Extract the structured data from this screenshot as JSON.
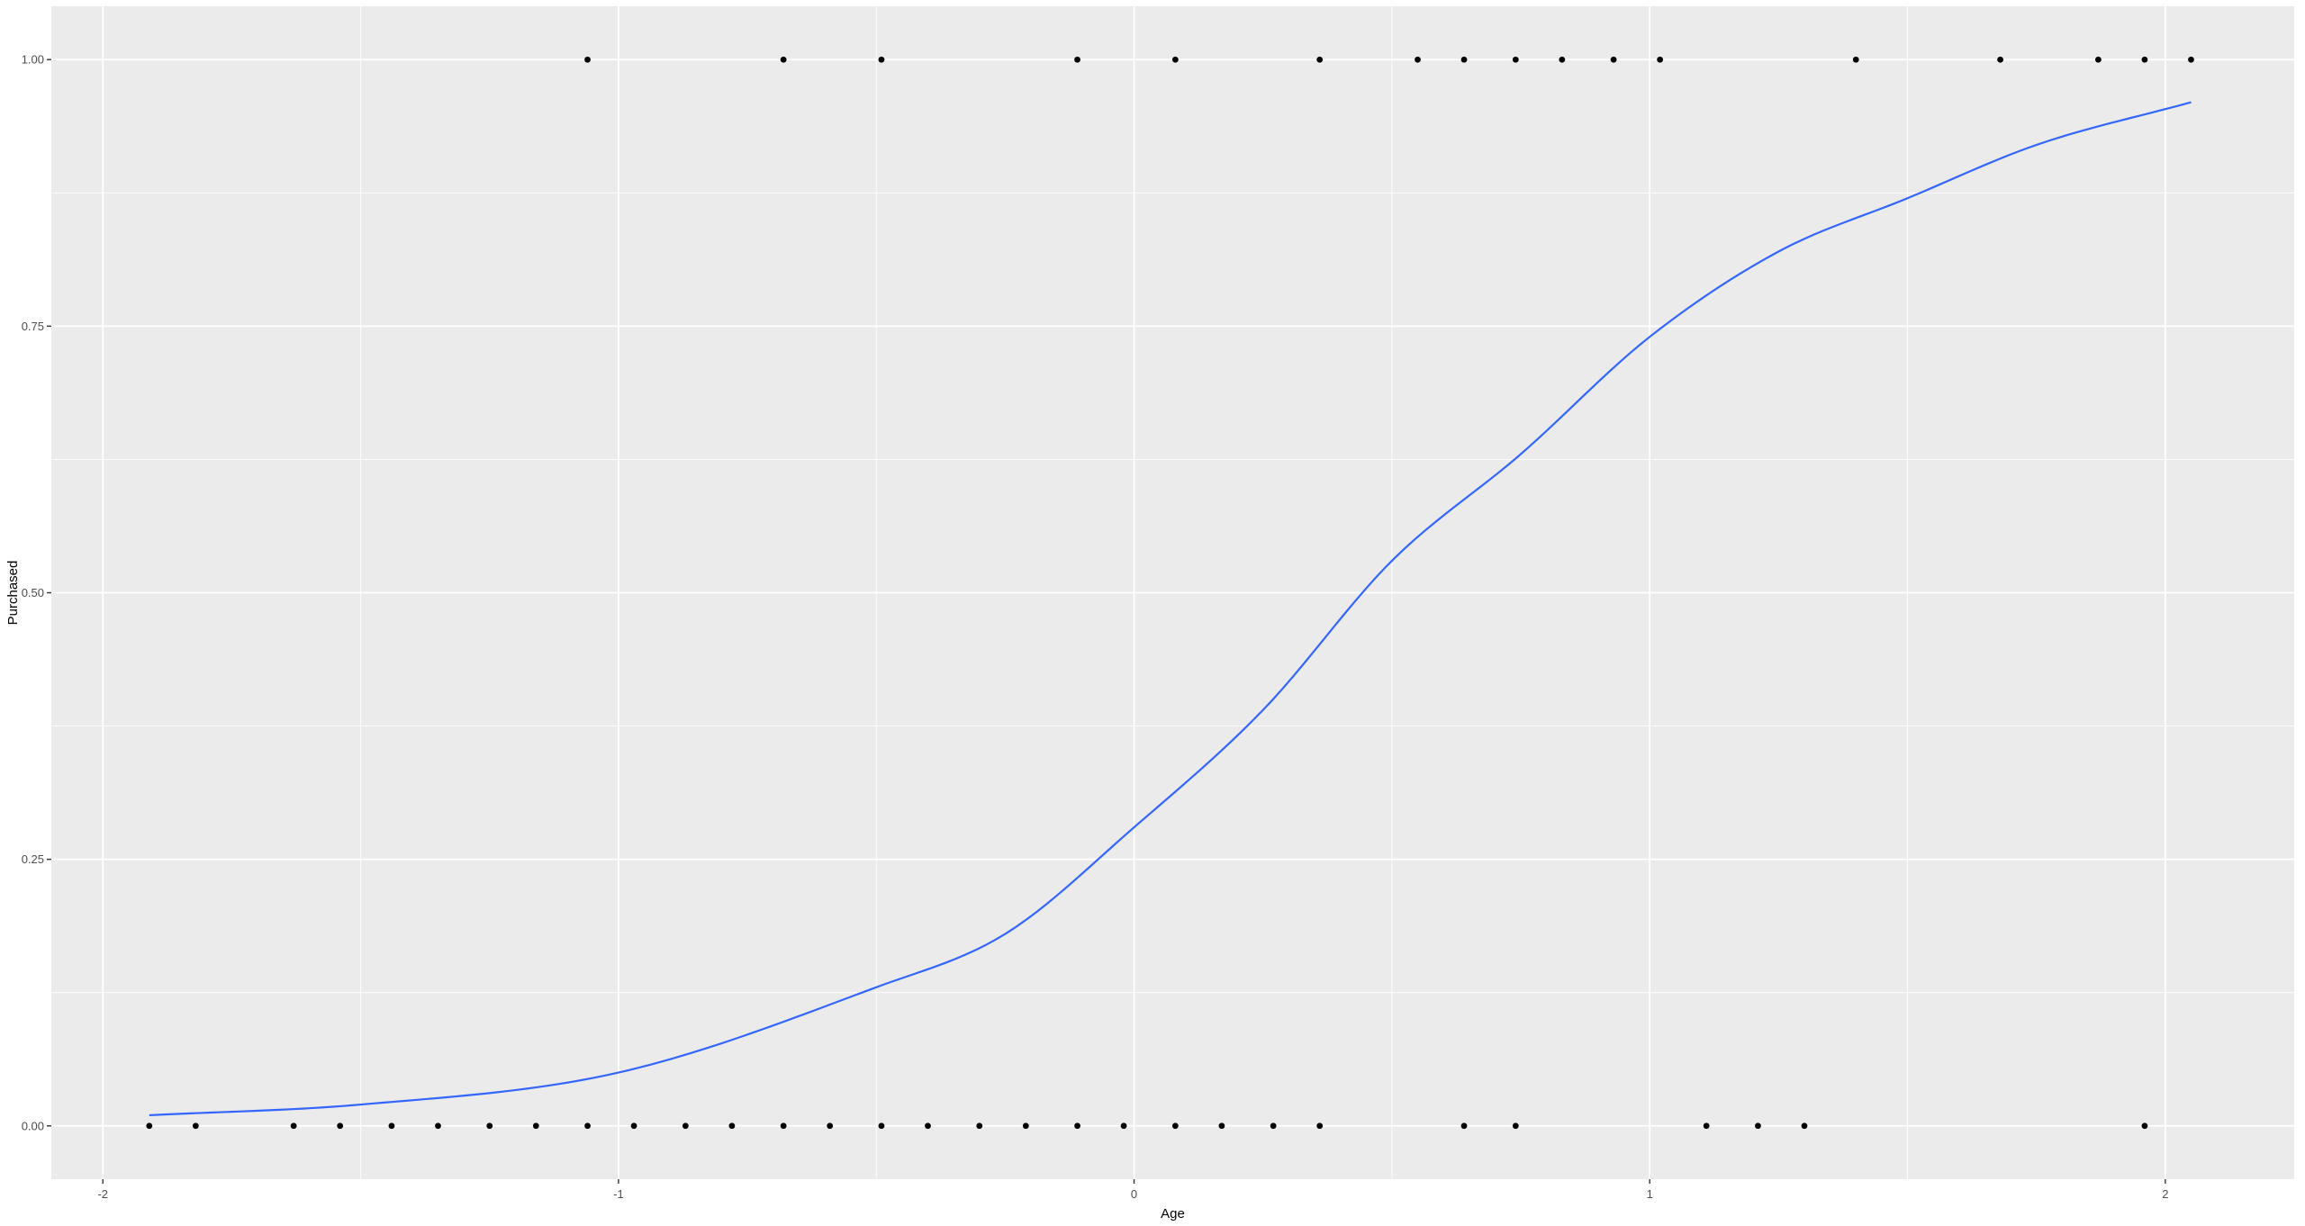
{
  "chart_data": {
    "type": "scatter",
    "title": "",
    "xlabel": "Age",
    "ylabel": "Purchased",
    "xlim": [
      -2.1,
      2.25
    ],
    "ylim": [
      -0.05,
      1.05
    ],
    "grid": true,
    "x_ticks": [
      {
        "value": -2,
        "label": "-2"
      },
      {
        "value": -1,
        "label": "-1"
      },
      {
        "value": 0,
        "label": "0"
      },
      {
        "value": 1,
        "label": "1"
      },
      {
        "value": 2,
        "label": "2"
      }
    ],
    "y_ticks": [
      {
        "value": 0,
        "label": "0.00"
      },
      {
        "value": 0.25,
        "label": "0.25"
      },
      {
        "value": 0.5,
        "label": "0.50"
      },
      {
        "value": 0.75,
        "label": "0.75"
      },
      {
        "value": 1,
        "label": "1.00"
      }
    ],
    "points": [
      {
        "x": -1.91,
        "y": 0
      },
      {
        "x": -1.82,
        "y": 0
      },
      {
        "x": -1.63,
        "y": 0
      },
      {
        "x": -1.54,
        "y": 0
      },
      {
        "x": -1.44,
        "y": 0
      },
      {
        "x": -1.35,
        "y": 0
      },
      {
        "x": -1.25,
        "y": 0
      },
      {
        "x": -1.16,
        "y": 0
      },
      {
        "x": -1.06,
        "y": 0
      },
      {
        "x": -0.97,
        "y": 0
      },
      {
        "x": -0.87,
        "y": 0
      },
      {
        "x": -0.78,
        "y": 0
      },
      {
        "x": -0.68,
        "y": 0
      },
      {
        "x": -0.59,
        "y": 0
      },
      {
        "x": -0.49,
        "y": 0
      },
      {
        "x": -0.4,
        "y": 0
      },
      {
        "x": -0.3,
        "y": 0
      },
      {
        "x": -0.21,
        "y": 0
      },
      {
        "x": -0.11,
        "y": 0
      },
      {
        "x": -0.02,
        "y": 0
      },
      {
        "x": 0.08,
        "y": 0
      },
      {
        "x": 0.17,
        "y": 0
      },
      {
        "x": 0.27,
        "y": 0
      },
      {
        "x": 0.36,
        "y": 0
      },
      {
        "x": 0.64,
        "y": 0
      },
      {
        "x": 0.74,
        "y": 0
      },
      {
        "x": 1.11,
        "y": 0
      },
      {
        "x": 1.21,
        "y": 0
      },
      {
        "x": 1.3,
        "y": 0
      },
      {
        "x": 1.96,
        "y": 0
      },
      {
        "x": -1.06,
        "y": 1
      },
      {
        "x": -0.68,
        "y": 1
      },
      {
        "x": -0.49,
        "y": 1
      },
      {
        "x": -0.11,
        "y": 1
      },
      {
        "x": 0.08,
        "y": 1
      },
      {
        "x": 0.36,
        "y": 1
      },
      {
        "x": 0.55,
        "y": 1
      },
      {
        "x": 0.64,
        "y": 1
      },
      {
        "x": 0.74,
        "y": 1
      },
      {
        "x": 0.83,
        "y": 1
      },
      {
        "x": 0.93,
        "y": 1
      },
      {
        "x": 1.02,
        "y": 1
      },
      {
        "x": 1.4,
        "y": 1
      },
      {
        "x": 1.68,
        "y": 1
      },
      {
        "x": 1.87,
        "y": 1
      },
      {
        "x": 1.96,
        "y": 1
      },
      {
        "x": 2.05,
        "y": 1
      }
    ],
    "fit_curve": {
      "type": "logistic",
      "x_range": [
        -1.91,
        2.05
      ],
      "values": [
        {
          "x": -1.91,
          "y": 0.01
        },
        {
          "x": -1.5,
          "y": 0.02
        },
        {
          "x": -1.0,
          "y": 0.05
        },
        {
          "x": -0.5,
          "y": 0.13
        },
        {
          "x": -0.25,
          "y": 0.18
        },
        {
          "x": 0.0,
          "y": 0.28
        },
        {
          "x": 0.25,
          "y": 0.39
        },
        {
          "x": 0.5,
          "y": 0.53
        },
        {
          "x": 0.75,
          "y": 0.63
        },
        {
          "x": 1.0,
          "y": 0.74
        },
        {
          "x": 1.25,
          "y": 0.82
        },
        {
          "x": 1.5,
          "y": 0.87
        },
        {
          "x": 1.75,
          "y": 0.92
        },
        {
          "x": 2.05,
          "y": 0.96
        }
      ],
      "color": "#3366FF"
    },
    "colors": {
      "panel_background": "#EBEBEB",
      "grid_major": "#FFFFFF",
      "point": "#000000",
      "curve": "#3366FF"
    }
  }
}
